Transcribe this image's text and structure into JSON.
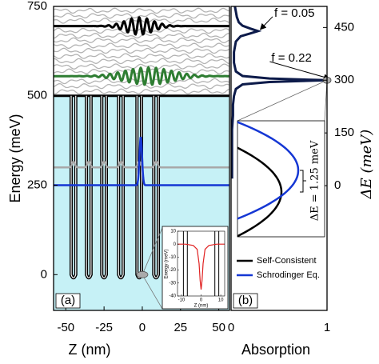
{
  "chart_data": [
    {
      "type": "levels",
      "label": "(a)",
      "xlabel": "Z (nm)",
      "ylabel": "Energy (meV)",
      "xlim": [
        -58,
        57
      ],
      "xticks": [
        -50,
        -25,
        0,
        25,
        50
      ],
      "ylim": [
        -100,
        750
      ],
      "yticks": [
        0,
        250,
        500,
        750
      ],
      "background": "#c6f1f6",
      "potential": {
        "top": 500,
        "bottom": 0,
        "well_centers": [
          -45,
          -35,
          -25,
          -14,
          -2,
          9
        ],
        "well_width": 3
      },
      "continuum": [
        512,
        527,
        541,
        568,
        582,
        597,
        611,
        626,
        640,
        655,
        668,
        682,
        710,
        724,
        738
      ],
      "levels": [
        {
          "energy": 695,
          "amplitude": 24,
          "peak_z": -2,
          "shape": "wave",
          "color": "#000000"
        },
        {
          "energy": 555,
          "amplitude": 24,
          "peak_z": 4,
          "shape": "wave",
          "color": "#2e7d32"
        },
        {
          "energy": 300,
          "amplitude": 16,
          "peak_z": -2,
          "shape": "bumps",
          "color": "#a8a8a8"
        },
        {
          "energy": 250,
          "amplitude": 135,
          "peak_z": -1,
          "shape": "spike",
          "color": "#1537d4"
        }
      ]
    },
    {
      "type": "absorption",
      "label": "(b)",
      "xlabel": "Absorption",
      "ylabel": "ΔE  (meV)",
      "xlim": [
        0,
        1
      ],
      "xticks": [
        0,
        1
      ],
      "y2lim": [
        -355,
        510
      ],
      "y2ticks": [
        0,
        150,
        300,
        450
      ],
      "series": [
        {
          "color": "#0d1b4a",
          "delta_e": [
            510,
            495,
            480,
            465,
            455,
            447,
            440,
            433,
            425,
            410,
            380,
            350,
            325,
            312,
            305,
            300,
            295,
            288,
            275,
            255,
            230,
            200,
            160,
            120,
            80,
            40,
            20
          ],
          "values": [
            0.04,
            0.05,
            0.06,
            0.08,
            0.12,
            0.2,
            0.28,
            0.2,
            0.1,
            0.05,
            0.03,
            0.03,
            0.05,
            0.12,
            0.4,
            1,
            0.4,
            0.12,
            0.05,
            0.03,
            0.02,
            0.02,
            0.01,
            0.01,
            0.01,
            0.01,
            0.01
          ]
        }
      ],
      "annotations": [
        {
          "text": "f = 0.05",
          "x": 0.45,
          "y": 490,
          "arrow_to": [
            0.28,
            440
          ]
        },
        {
          "text": "f = 0.22",
          "x": 0.42,
          "y": 362,
          "arrow_to": [
            1,
            300
          ]
        }
      ]
    },
    {
      "type": "line",
      "xlabel": "Z (nm)",
      "ylabel": "Energy (meV)",
      "xlim": [
        -12,
        12
      ],
      "xticks": [
        -10,
        0,
        10
      ],
      "ylim": [
        -40,
        10
      ],
      "yticks": [
        10,
        0,
        -10,
        -20,
        -30,
        -40
      ],
      "walls": [
        -9,
        -7,
        7,
        9
      ],
      "series": [
        {
          "color": "#e02020",
          "x": [
            -12,
            -8,
            -4,
            -2,
            -1,
            -0.5,
            0,
            0.5,
            1,
            2,
            4,
            8,
            12
          ],
          "values": [
            0,
            0,
            -1,
            -4,
            -15,
            -28,
            -35,
            -28,
            -15,
            -4,
            -1,
            0,
            0
          ]
        }
      ]
    },
    {
      "type": "crossing",
      "annotation": "ΔE = 1.25 meV",
      "series": [
        {
          "name": "Self-Consistent",
          "color": "#000000"
        },
        {
          "name": "Schrodinger Eq.",
          "color": "#1537d4"
        }
      ]
    }
  ]
}
